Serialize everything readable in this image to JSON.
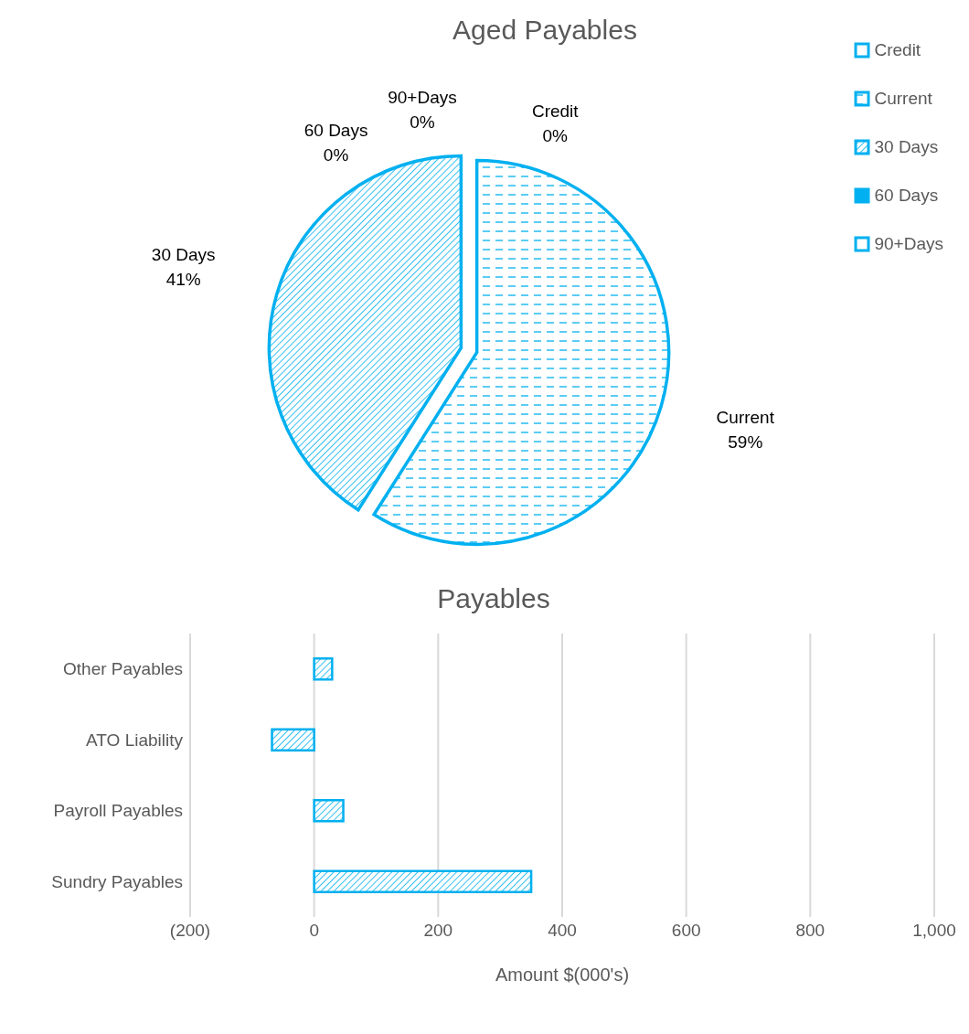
{
  "chart_data": [
    {
      "type": "pie",
      "title": "Aged Payables",
      "categories": [
        "Credit",
        "Current",
        "30 Days",
        "60 Days",
        "90+Days"
      ],
      "values": [
        0,
        59,
        41,
        0,
        0
      ],
      "colors": [
        "#00b0f0",
        "#00b0f0",
        "#00b0f0",
        "#00b0f0",
        "#00b0f0"
      ],
      "value_labels": [
        "0%",
        "59%",
        "41%",
        "0%",
        "0%"
      ],
      "legend": "top right"
    },
    {
      "type": "bar",
      "title": "Payables",
      "orientation": "horizontal",
      "categories": [
        "Other Payables",
        "ATO Liability",
        "Payroll Payables",
        "Sundry Payables"
      ],
      "values": [
        29,
        -68,
        47,
        350
      ],
      "color": "#00b0f0",
      "xlabel": "Amount $(000's)",
      "xlim": [
        -200,
        1000
      ],
      "xticks": [
        {
          "value": -200,
          "label": "(200)"
        },
        0,
        200,
        400,
        600,
        800,
        {
          "value": 1000,
          "label": "1,000"
        }
      ],
      "grid": "x"
    }
  ]
}
